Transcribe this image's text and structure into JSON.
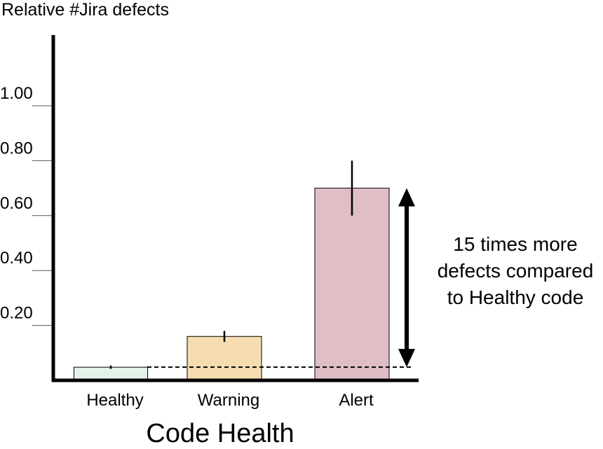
{
  "chart_data": {
    "type": "bar",
    "ylabel": "Relative #Jira defects",
    "xlabel": "Code Health",
    "categories": [
      "Healthy",
      "Warning",
      "Alert"
    ],
    "values": [
      0.048,
      0.16,
      0.7
    ],
    "error_bars": [
      [
        0.042,
        0.054
      ],
      [
        0.14,
        0.18
      ],
      [
        0.6,
        0.8
      ]
    ],
    "yticks": [
      0.2,
      0.4,
      0.6,
      0.8,
      1.0
    ],
    "ytick_labels": [
      "0.20",
      "0.40",
      "0.60",
      "0.80",
      "1.00"
    ],
    "ylim": [
      0,
      1.25
    ],
    "colors": [
      "#e3f3e8",
      "#f5ddb0",
      "#dfbec6"
    ],
    "reference_line": 0.048,
    "annotation": [
      "15 times more",
      "defects compared",
      "to Healthy code"
    ]
  }
}
